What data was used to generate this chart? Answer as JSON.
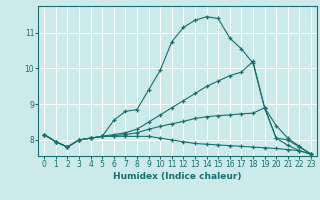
{
  "xlabel": "Humidex (Indice chaleur)",
  "background_color": "#cceaea",
  "grid_color": "#ffffff",
  "line_color": "#1a6e6e",
  "xlim": [
    -0.5,
    23.5
  ],
  "ylim": [
    7.55,
    11.75
  ],
  "yticks": [
    8,
    9,
    10,
    11
  ],
  "xticks": [
    0,
    1,
    2,
    3,
    4,
    5,
    6,
    7,
    8,
    9,
    10,
    11,
    12,
    13,
    14,
    15,
    16,
    17,
    18,
    19,
    20,
    21,
    22,
    23
  ],
  "series": [
    {
      "x": [
        0,
        1,
        2,
        3,
        4,
        5,
        6,
        7,
        8,
        9,
        10,
        11,
        12,
        13,
        14,
        15,
        16,
        17,
        18,
        19,
        20,
        21,
        22,
        23
      ],
      "y": [
        8.15,
        7.95,
        7.8,
        8.0,
        8.05,
        8.1,
        8.55,
        8.8,
        8.85,
        9.4,
        9.95,
        10.75,
        11.15,
        11.35,
        11.45,
        11.4,
        10.85,
        10.55,
        10.15,
        8.9,
        8.05,
        8.0,
        7.8,
        7.6
      ]
    },
    {
      "x": [
        0,
        1,
        2,
        3,
        4,
        5,
        6,
        7,
        8,
        9,
        10,
        11,
        12,
        13,
        14,
        15,
        16,
        17,
        18,
        19,
        20,
        21,
        22,
        23
      ],
      "y": [
        8.15,
        7.95,
        7.8,
        8.0,
        8.05,
        8.1,
        8.15,
        8.2,
        8.3,
        8.5,
        8.7,
        8.9,
        9.1,
        9.3,
        9.5,
        9.65,
        9.8,
        9.9,
        10.2,
        8.9,
        8.05,
        7.85,
        7.7,
        7.6
      ]
    },
    {
      "x": [
        0,
        1,
        2,
        3,
        4,
        5,
        6,
        7,
        8,
        9,
        10,
        11,
        12,
        13,
        14,
        15,
        16,
        17,
        18,
        19,
        20,
        21,
        22,
        23
      ],
      "y": [
        8.15,
        7.95,
        7.8,
        8.0,
        8.05,
        8.1,
        8.12,
        8.15,
        8.2,
        8.3,
        8.38,
        8.45,
        8.52,
        8.6,
        8.65,
        8.68,
        8.7,
        8.73,
        8.75,
        8.9,
        8.4,
        8.05,
        7.82,
        7.6
      ]
    },
    {
      "x": [
        0,
        1,
        2,
        3,
        4,
        5,
        6,
        7,
        8,
        9,
        10,
        11,
        12,
        13,
        14,
        15,
        16,
        17,
        18,
        19,
        20,
        21,
        22,
        23
      ],
      "y": [
        8.15,
        7.95,
        7.8,
        8.0,
        8.05,
        8.1,
        8.1,
        8.1,
        8.1,
        8.1,
        8.05,
        8.0,
        7.95,
        7.9,
        7.88,
        7.86,
        7.84,
        7.82,
        7.8,
        7.78,
        7.76,
        7.73,
        7.7,
        7.6
      ]
    }
  ]
}
